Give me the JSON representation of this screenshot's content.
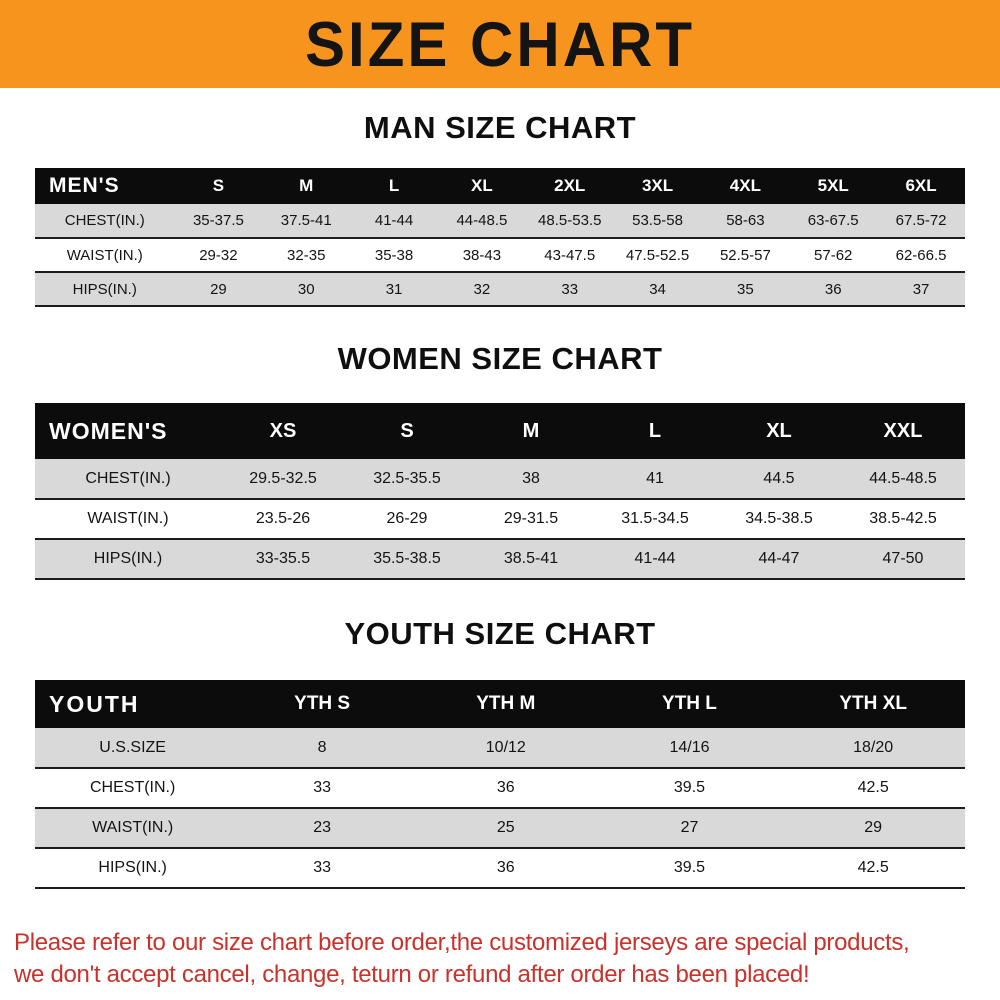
{
  "banner": {
    "title": "SIZE CHART"
  },
  "sections": [
    {
      "heading": "MAN SIZE CHART",
      "table": {
        "corner_label": "MEN'S",
        "columns": [
          "S",
          "M",
          "L",
          "XL",
          "2XL",
          "3XL",
          "4XL",
          "5XL",
          "6XL"
        ],
        "rows": [
          {
            "label": "CHEST(IN.)",
            "values": [
              "35-37.5",
              "37.5-41",
              "41-44",
              "44-48.5",
              "48.5-53.5",
              "53.5-58",
              "58-63",
              "63-67.5",
              "67.5-72"
            ]
          },
          {
            "label": "WAIST(IN.)",
            "values": [
              "29-32",
              "32-35",
              "35-38",
              "38-43",
              "43-47.5",
              "47.5-52.5",
              "52.5-57",
              "57-62",
              "62-66.5"
            ]
          },
          {
            "label": "HIPS(IN.)",
            "values": [
              "29",
              "30",
              "31",
              "32",
              "33",
              "34",
              "35",
              "36",
              "37"
            ]
          }
        ]
      }
    },
    {
      "heading": "WOMEN SIZE CHART",
      "table": {
        "corner_label": "WOMEN'S",
        "columns": [
          "XS",
          "S",
          "M",
          "L",
          "XL",
          "XXL"
        ],
        "rows": [
          {
            "label": "CHEST(IN.)",
            "values": [
              "29.5-32.5",
              "32.5-35.5",
              "38",
              "41",
              "44.5",
              "44.5-48.5"
            ]
          },
          {
            "label": "WAIST(IN.)",
            "values": [
              "23.5-26",
              "26-29",
              "29-31.5",
              "31.5-34.5",
              "34.5-38.5",
              "38.5-42.5"
            ]
          },
          {
            "label": "HIPS(IN.)",
            "values": [
              "33-35.5",
              "35.5-38.5",
              "38.5-41",
              "41-44",
              "44-47",
              "47-50"
            ]
          }
        ]
      }
    },
    {
      "heading": "YOUTH SIZE CHART",
      "table": {
        "corner_label": "YOUTH",
        "columns": [
          "YTH S",
          "YTH M",
          "YTH L",
          "YTH XL"
        ],
        "rows": [
          {
            "label": "U.S.SIZE",
            "values": [
              "8",
              "10/12",
              "14/16",
              "18/20"
            ]
          },
          {
            "label": "CHEST(IN.)",
            "values": [
              "33",
              "36",
              "39.5",
              "42.5"
            ]
          },
          {
            "label": "WAIST(IN.)",
            "values": [
              "23",
              "25",
              "27",
              "29"
            ]
          },
          {
            "label": "HIPS(IN.)",
            "values": [
              "33",
              "36",
              "39.5",
              "42.5"
            ]
          }
        ]
      }
    }
  ],
  "footer": {
    "lines": [
      "Please refer to our size chart before order,the customized jerseys are special products,",
      "we don't accept cancel, change, teturn or refund after order has been placed!"
    ]
  },
  "colors": {
    "banner_bg": "#F7941E",
    "table_header_bg": "#0C0C0C",
    "row_alt_bg": "#D9D9D9",
    "row_bg": "#FFFFFF",
    "footer_text": "#C8322B"
  }
}
